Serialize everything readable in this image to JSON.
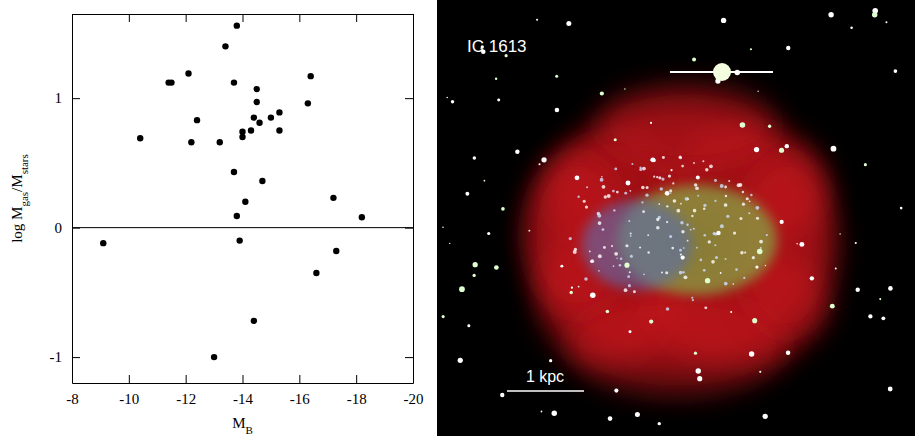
{
  "chart_data": {
    "type": "scatter",
    "xlabel": [
      "M",
      "B"
    ],
    "ylabel": [
      "log M",
      "gas",
      "/M",
      "stars"
    ],
    "x": [
      -9.1,
      -10.4,
      -11.4,
      -11.5,
      -12.1,
      -12.2,
      -12.4,
      -13.0,
      -13.2,
      -13.4,
      -13.7,
      -13.8,
      -13.7,
      -13.8,
      -13.9,
      -14.0,
      -14.0,
      -14.1,
      -14.3,
      -14.4,
      -14.4,
      -14.5,
      -14.5,
      -14.6,
      -14.7,
      -15.0,
      -15.3,
      -15.3,
      -16.3,
      -16.4,
      -16.6,
      -17.2,
      -17.3,
      -18.2
    ],
    "values": [
      -0.12,
      0.69,
      1.12,
      1.12,
      1.19,
      0.66,
      0.83,
      -1.0,
      0.66,
      1.4,
      1.12,
      1.56,
      0.43,
      0.09,
      -0.1,
      0.74,
      0.7,
      0.2,
      0.75,
      0.85,
      -0.72,
      0.97,
      1.07,
      0.81,
      0.36,
      0.85,
      0.89,
      0.75,
      0.96,
      1.17,
      -0.35,
      0.23,
      -0.18,
      0.08
    ],
    "color": "#000000",
    "marker": "circle",
    "xlim": [
      -8,
      -20
    ],
    "xticks": [
      -8,
      -10,
      -12,
      -14,
      -16,
      -18,
      -20
    ],
    "ylim": [
      -1.2,
      1.65
    ],
    "yticks": [
      -1,
      0,
      1
    ],
    "hline": 0,
    "grid": false
  },
  "image_panel": {
    "label": "IC 1613",
    "scale_label": "1 kpc"
  }
}
